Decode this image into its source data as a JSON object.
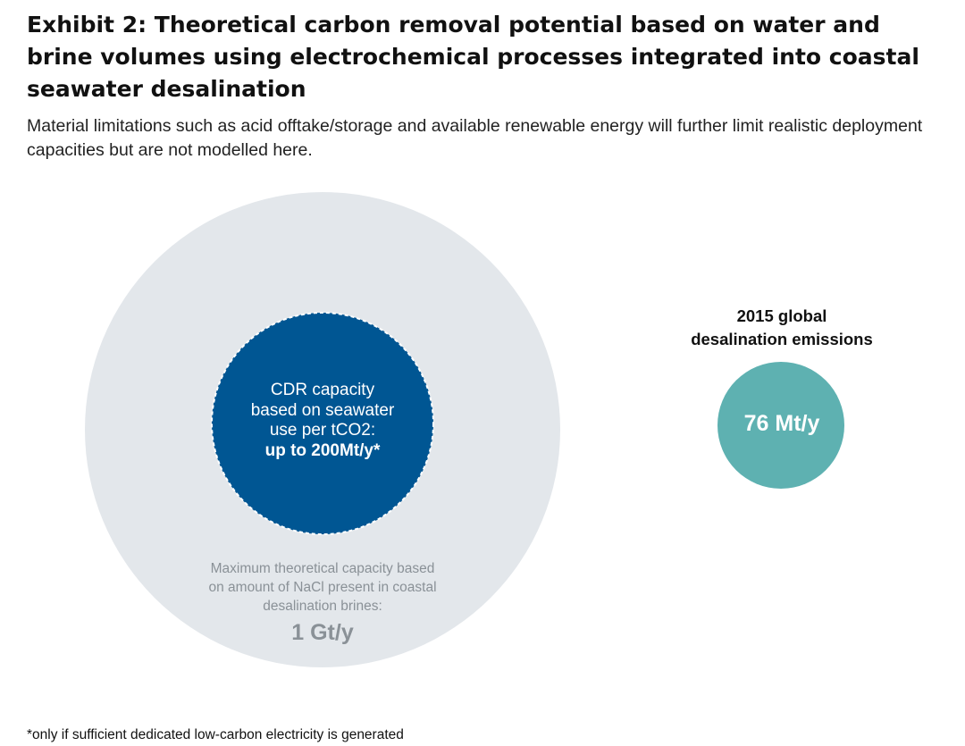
{
  "header": {
    "title": "Exhibit 2: Theoretical carbon removal potential based on water and brine volumes using electrochemical processes integrated into coastal seawater desalination",
    "subtitle": "Material limitations such as acid offtake/storage and available renewable energy will further limit realistic deployment capacities but are not modelled here."
  },
  "chart_data": {
    "type": "bubble",
    "title": "",
    "unit": "Mt/y",
    "items": [
      {
        "id": "nacl",
        "label_lines": [
          "Maximum theoretical capacity based",
          "on amount of NaCl present in coastal",
          "desalination brines:"
        ],
        "value_text": "1 Gt/y",
        "value": 1000,
        "color": "#e3e7eb"
      },
      {
        "id": "cdr",
        "label_lines": [
          "CDR capacity",
          "based on seawater",
          "use per tCO2:"
        ],
        "value_text": "up to 200Mt/y*",
        "value": 200,
        "color": "#005693",
        "dashed_outline": true
      },
      {
        "id": "desal",
        "label_lines": [
          "2015 global",
          "desalination emissions"
        ],
        "value_text": "76 Mt/y",
        "value": 76,
        "color": "#5eb1b1"
      }
    ]
  },
  "footnote": "*only if sufficient dedicated low-carbon electricity is generated"
}
